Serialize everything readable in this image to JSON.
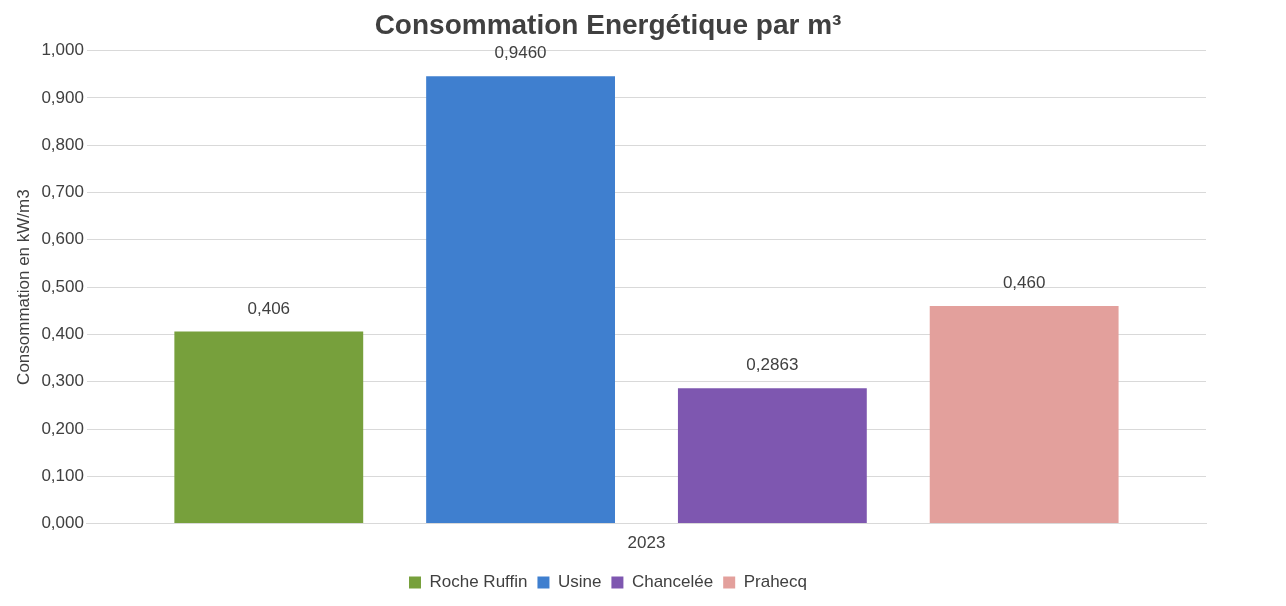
{
  "chart_data": {
    "type": "bar",
    "title": "Consommation Energétique par m³",
    "ylabel": "Consommation en kW/m3",
    "categories": [
      "2023"
    ],
    "series": [
      {
        "name": "Roche Ruffin",
        "color": "#77a03c",
        "values": [
          0.406
        ],
        "value_labels": [
          "0,406"
        ]
      },
      {
        "name": "Usine",
        "color": "#3f7fcf",
        "values": [
          0.946
        ],
        "value_labels": [
          "0,9460"
        ]
      },
      {
        "name": "Chancelée",
        "color": "#7e57b0",
        "values": [
          0.2863
        ],
        "value_labels": [
          "0,2863"
        ]
      },
      {
        "name": "Prahecq",
        "color": "#e3a09c",
        "values": [
          0.46
        ],
        "value_labels": [
          "0,460"
        ]
      }
    ],
    "ylim": [
      0,
      1
    ],
    "yticks": [
      {
        "value": 0,
        "label": "0,000"
      },
      {
        "value": 0.1,
        "label": "0,100"
      },
      {
        "value": 0.2,
        "label": "0,200"
      },
      {
        "value": 0.3,
        "label": "0,300"
      },
      {
        "value": 0.4,
        "label": "0,400"
      },
      {
        "value": 0.5,
        "label": "0,500"
      },
      {
        "value": 0.6,
        "label": "0,600"
      },
      {
        "value": 0.7,
        "label": "0,700"
      },
      {
        "value": 0.8,
        "label": "0,800"
      },
      {
        "value": 0.9,
        "label": "0,900"
      },
      {
        "value": 1,
        "label": "1,000"
      }
    ],
    "grid": "y",
    "legend": "bottom"
  }
}
